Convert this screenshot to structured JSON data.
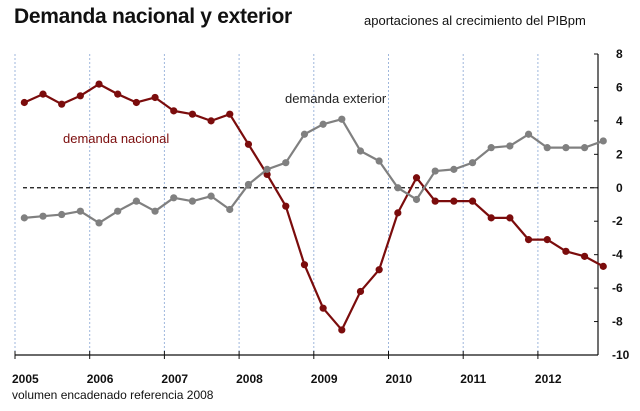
{
  "chart_data": {
    "type": "line",
    "title": "Demanda nacional y exterior",
    "subtitle": "aportaciones al crecimiento del PIBpm",
    "footnote": "volumen encadenado referencia 2008",
    "xlabel": "",
    "ylabel": "",
    "x_tick_labels": [
      "2005",
      "2006",
      "2007",
      "2008",
      "2009",
      "2010",
      "2011",
      "2012"
    ],
    "y_ticks": [
      8,
      6,
      4,
      2,
      0,
      -2,
      -4,
      -6,
      -8,
      -10
    ],
    "ylim": [
      -10,
      8
    ],
    "y_axis_side": "right",
    "grid": "vertical dashed at year boundaries",
    "zero_line": "dashed",
    "x": [
      "2005Q1",
      "2005Q2",
      "2005Q3",
      "2005Q4",
      "2006Q1",
      "2006Q2",
      "2006Q3",
      "2006Q4",
      "2007Q1",
      "2007Q2",
      "2007Q3",
      "2007Q4",
      "2008Q1",
      "2008Q2",
      "2008Q3",
      "2008Q4",
      "2009Q1",
      "2009Q2",
      "2009Q3",
      "2009Q4",
      "2010Q1",
      "2010Q2",
      "2010Q3",
      "2010Q4",
      "2011Q1",
      "2011Q2",
      "2011Q3",
      "2011Q4",
      "2012Q1",
      "2012Q2",
      "2012Q3",
      "2012Q4"
    ],
    "series": [
      {
        "name": "demanda nacional",
        "color": "#7b0c0c",
        "label_position": "left, above zero line",
        "values": [
          5.1,
          5.6,
          5.0,
          5.5,
          6.2,
          5.6,
          5.1,
          5.4,
          4.6,
          4.4,
          4.0,
          4.4,
          2.6,
          0.8,
          -1.1,
          -4.6,
          -7.2,
          -8.5,
          -6.2,
          -4.9,
          -1.5,
          0.6,
          -0.8,
          -0.8,
          -0.8,
          -1.8,
          -1.8,
          -3.1,
          -3.1,
          -3.8,
          -4.1,
          -4.7
        ]
      },
      {
        "name": "demanda exterior",
        "color": "#808080",
        "label_position": "center-top",
        "values": [
          -1.8,
          -1.7,
          -1.6,
          -1.4,
          -2.1,
          -1.4,
          -0.8,
          -1.4,
          -0.6,
          -0.8,
          -0.5,
          -1.3,
          0.2,
          1.1,
          1.5,
          3.2,
          3.8,
          4.1,
          2.2,
          1.6,
          0.0,
          -0.7,
          1.0,
          1.1,
          1.5,
          2.4,
          2.5,
          3.2,
          2.4,
          2.4,
          2.4,
          2.8
        ]
      }
    ]
  }
}
